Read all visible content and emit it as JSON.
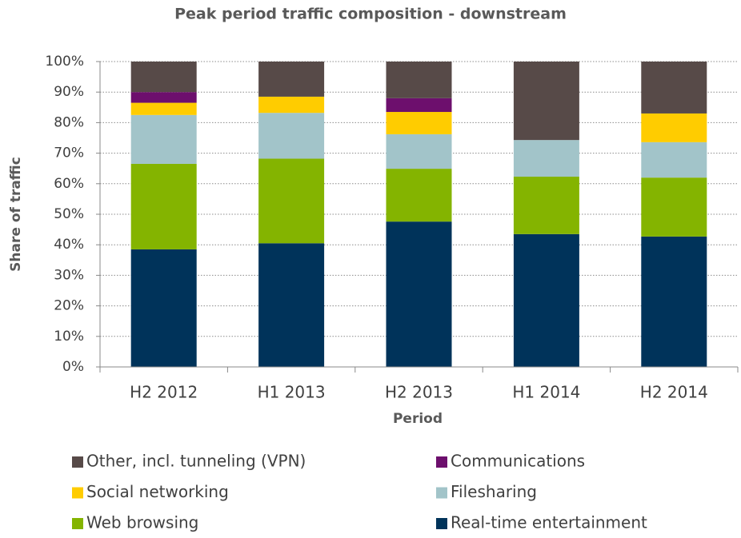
{
  "chart_data": {
    "type": "stacked_bar",
    "title": "Peak period traffic composition - downstream",
    "x_label": "Period",
    "y_label": "Share of traffic",
    "categories": [
      "H2 2012",
      "H1 2013",
      "H2 2013",
      "H1 2014",
      "H2 2014"
    ],
    "series": [
      {
        "name": "Real-time entertainment",
        "color": "#00335a",
        "values": [
          38.5,
          40.5,
          47.6,
          43.5,
          42.7
        ]
      },
      {
        "name": "Web browsing",
        "color": "#84b400",
        "values": [
          28,
          27.7,
          17.3,
          18.8,
          19.3
        ]
      },
      {
        "name": "Filesharing",
        "color": "#a2c4c9",
        "values": [
          16,
          15,
          11.3,
          12,
          11.6
        ]
      },
      {
        "name": "Social networking",
        "color": "#ffcc00",
        "values": [
          4,
          5.3,
          7.3,
          0,
          9.4
        ]
      },
      {
        "name": "Communications",
        "color": "#6d0f6d",
        "values": [
          3.5,
          0,
          4.5,
          0,
          0
        ]
      },
      {
        "name": "Other, incl. tunneling (VPN)",
        "color": "#574a48",
        "values": [
          10,
          11.5,
          12,
          25.7,
          17
        ]
      }
    ],
    "ylim": [
      0,
      100
    ],
    "yticks": [
      {
        "value": 0,
        "label": "0%"
      },
      {
        "value": 10,
        "label": "10%"
      },
      {
        "value": 20,
        "label": "20%"
      },
      {
        "value": 30,
        "label": "30%"
      },
      {
        "value": 40,
        "label": "40%"
      },
      {
        "value": 50,
        "label": "50%"
      },
      {
        "value": 60,
        "label": "60%"
      },
      {
        "value": 70,
        "label": "70%"
      },
      {
        "value": 80,
        "label": "80%"
      },
      {
        "value": 90,
        "label": "90%"
      },
      {
        "value": 100,
        "label": "100%"
      }
    ],
    "grid": true
  }
}
